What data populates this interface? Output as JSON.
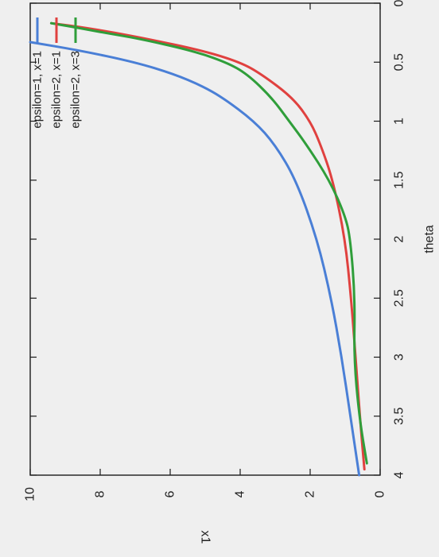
{
  "chart_data": {
    "type": "line",
    "xlabel": "theta",
    "ylabel": "x1",
    "xlim": [
      0,
      4
    ],
    "ylim": [
      0,
      10
    ],
    "x_ticks": [
      "0",
      "0.5",
      "1",
      "1.5",
      "2",
      "2.5",
      "3",
      "3.5",
      "4"
    ],
    "y_ticks": [
      "0",
      "2",
      "4",
      "6",
      "8",
      "10"
    ],
    "orientation": "rotated 90 degrees counter-clockwise",
    "legend_position": "top-right (as printed)",
    "grid": false,
    "series": [
      {
        "name": "epsilon=1, x=1",
        "color": "#4a7fd6",
        "x": [
          0.33,
          0.4,
          0.5,
          0.6,
          0.7,
          0.8,
          1.0,
          1.2,
          1.5,
          2.0,
          2.5,
          3.0,
          3.5,
          4.0
        ],
        "y": [
          10.0,
          8.6,
          7.0,
          5.9,
          5.1,
          4.5,
          3.6,
          3.0,
          2.4,
          1.8,
          1.4,
          1.1,
          0.85,
          0.6
        ]
      },
      {
        "name": "epsilon=2, x=1",
        "color": "#e0413f",
        "x": [
          0.17,
          0.2,
          0.25,
          0.3,
          0.4,
          0.5,
          0.6,
          0.8,
          1.0,
          1.2,
          1.5,
          2.0,
          2.5,
          3.0,
          3.5,
          3.95
        ],
        "y": [
          9.4,
          8.6,
          7.6,
          6.7,
          5.1,
          4.0,
          3.4,
          2.5,
          2.0,
          1.7,
          1.35,
          1.0,
          0.83,
          0.7,
          0.58,
          0.45
        ]
      },
      {
        "name": "epsilon=2, x=3",
        "color": "#2f9e3a",
        "x": [
          0.17,
          0.2,
          0.25,
          0.3,
          0.4,
          0.5,
          0.6,
          0.8,
          1.0,
          1.2,
          1.5,
          1.8,
          2.0,
          2.5,
          3.0,
          3.5,
          3.9
        ],
        "y": [
          9.4,
          8.8,
          7.9,
          6.9,
          5.4,
          4.4,
          3.8,
          3.1,
          2.6,
          2.1,
          1.45,
          1.0,
          0.85,
          0.72,
          0.75,
          0.6,
          0.38
        ]
      }
    ]
  }
}
